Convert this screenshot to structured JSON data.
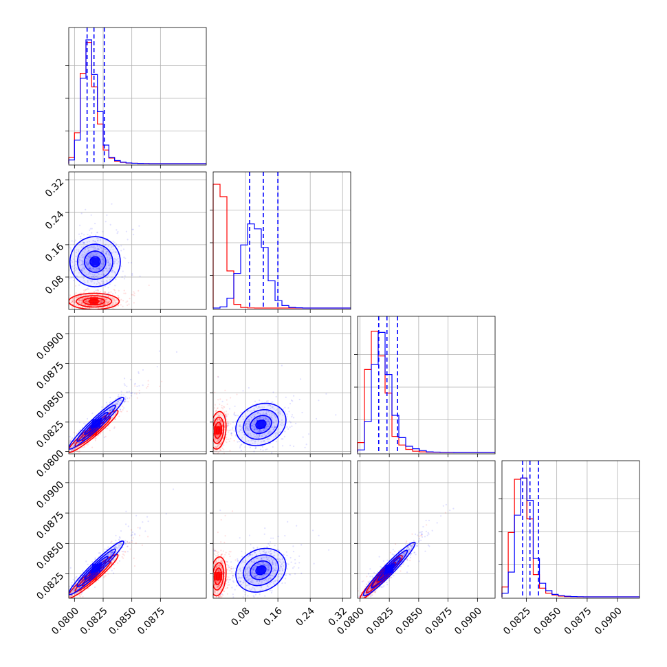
{
  "chart_data": {
    "type": "corner",
    "grid": true,
    "series_colors": {
      "red": "#ff0000",
      "blue": "#0000ff"
    },
    "variables": [
      {
        "range": [
          0.0795,
          0.0915
        ],
        "ticks": [
          0.08,
          0.0825,
          0.085,
          0.0875
        ],
        "tick_labels": [
          "0.0800",
          "0.0825",
          "0.0850",
          "0.0875"
        ],
        "quantiles_blue": [
          0.0811,
          0.0817,
          0.0826
        ]
      },
      {
        "range": [
          0.0,
          0.34
        ],
        "ticks": [
          0.08,
          0.16,
          0.24,
          0.32
        ],
        "tick_labels": [
          "0.08",
          "0.16",
          "0.24",
          "0.32"
        ],
        "quantiles_blue": [
          0.09,
          0.124,
          0.16
        ]
      },
      {
        "range": [
          0.0798,
          0.0915
        ],
        "ticks": [
          0.08,
          0.0825,
          0.085,
          0.0875,
          0.09
        ],
        "tick_labels": [
          "0.0800",
          "0.0825",
          "0.0850",
          "0.0875",
          "0.0900"
        ],
        "quantiles_blue": [
          0.0816,
          0.0823,
          0.0832
        ]
      },
      {
        "range": [
          0.0805,
          0.0918
        ],
        "ticks": [
          0.0825,
          0.085,
          0.0875,
          0.09
        ],
        "tick_labels": [
          "0.0825",
          "0.0850",
          "0.0875",
          "0.0900"
        ],
        "quantiles_blue": [
          0.0822,
          0.0828,
          0.0835
        ]
      }
    ],
    "histograms": [
      {
        "var": 0,
        "bins": [
          0.0795,
          0.0915,
          24
        ],
        "blue": [
          0.03,
          0.19,
          0.69,
          1.0,
          0.72,
          0.42,
          0.15,
          0.05,
          0.025,
          0.012,
          0.006,
          0.003,
          0.002,
          0.001,
          0,
          0,
          0,
          0,
          0,
          0,
          0,
          0,
          0,
          0
        ],
        "red": [
          0.05,
          0.25,
          0.73,
          0.98,
          0.62,
          0.32,
          0.11,
          0.045,
          0.02,
          0.01,
          0.005,
          0.003,
          0.001,
          0.001,
          0,
          0,
          0,
          0,
          0,
          0,
          0,
          0,
          0,
          0
        ]
      },
      {
        "var": 1,
        "bins": [
          0.0,
          0.34,
          20
        ],
        "blue": [
          0.0,
          0.01,
          0.08,
          0.28,
          0.51,
          0.68,
          0.64,
          0.49,
          0.22,
          0.06,
          0.02,
          0.005,
          0.002,
          0,
          0,
          0,
          0,
          0,
          0,
          0
        ],
        "red": [
          1.0,
          0.9,
          0.3,
          0.03,
          0.005,
          0.001,
          0,
          0,
          0,
          0,
          0,
          0,
          0,
          0,
          0,
          0,
          0,
          0,
          0,
          0
        ]
      },
      {
        "var": 2,
        "bins": [
          0.0798,
          0.0915,
          20
        ],
        "blue": [
          0.02,
          0.25,
          0.71,
          0.97,
          0.63,
          0.3,
          0.12,
          0.05,
          0.03,
          0.015,
          0.005,
          0.003,
          0.001,
          0.001,
          0,
          0,
          0,
          0,
          0,
          0
        ],
        "red": [
          0.08,
          0.67,
          0.98,
          0.78,
          0.48,
          0.13,
          0.06,
          0.025,
          0.01,
          0.005,
          0.002,
          0.001,
          0,
          0,
          0,
          0,
          0,
          0,
          0,
          0
        ]
      },
      {
        "var": 3,
        "bins": [
          0.0805,
          0.0918,
          22
        ],
        "blue": [
          0.03,
          0.2,
          0.66,
          0.96,
          0.78,
          0.31,
          0.11,
          0.05,
          0.02,
          0.01,
          0.005,
          0.002,
          0.001,
          0,
          0,
          0,
          0,
          0,
          0,
          0,
          0,
          0
        ],
        "red": [
          0.08,
          0.52,
          0.95,
          0.96,
          0.63,
          0.18,
          0.07,
          0.03,
          0.015,
          0.006,
          0.002,
          0.001,
          0,
          0,
          0,
          0,
          0,
          0,
          0,
          0,
          0,
          0
        ]
      }
    ],
    "pairs": [
      {
        "x_var": 0,
        "y_var": 1,
        "blue": {
          "mean": [
            0.0818,
            0.118
          ],
          "sd": [
            0.0011,
            0.031
          ],
          "rho": 0.0
        },
        "red": {
          "mean": [
            0.0817,
            0.02
          ],
          "sd": [
            0.0011,
            0.01
          ],
          "rho": 0.0
        }
      },
      {
        "x_var": 0,
        "y_var": 2,
        "blue": {
          "mean": [
            0.0819,
            0.0824
          ],
          "sd": [
            0.0012,
            0.0011
          ],
          "rho": 0.96
        },
        "red": {
          "mean": [
            0.0816,
            0.0817
          ],
          "sd": [
            0.0011,
            0.0009
          ],
          "rho": 0.95
        }
      },
      {
        "x_var": 1,
        "y_var": 2,
        "blue": {
          "mean": [
            0.118,
            0.0823
          ],
          "sd": [
            0.031,
            0.0009
          ],
          "rho": 0.2
        },
        "red": {
          "mean": [
            0.012,
            0.0818
          ],
          "sd": [
            0.01,
            0.0008
          ],
          "rho": 0.2
        }
      },
      {
        "x_var": 0,
        "y_var": 3,
        "blue": {
          "mean": [
            0.0819,
            0.083
          ],
          "sd": [
            0.0012,
            0.0011
          ],
          "rho": 0.96
        },
        "red": {
          "mean": [
            0.0816,
            0.0823
          ],
          "sd": [
            0.0011,
            0.0009
          ],
          "rho": 0.95
        }
      },
      {
        "x_var": 1,
        "y_var": 3,
        "blue": {
          "mean": [
            0.118,
            0.0828
          ],
          "sd": [
            0.031,
            0.0009
          ],
          "rho": 0.2
        },
        "red": {
          "mean": [
            0.012,
            0.0823
          ],
          "sd": [
            0.01,
            0.0008
          ],
          "rho": 0.2
        }
      },
      {
        "x_var": 2,
        "y_var": 3,
        "blue": {
          "mean": [
            0.0825,
            0.0829
          ],
          "sd": [
            0.0011,
            0.0011
          ],
          "rho": 0.96
        },
        "red": {
          "mean": [
            0.0818,
            0.0822
          ],
          "sd": [
            0.0009,
            0.0009
          ],
          "rho": 0.96
        }
      }
    ]
  }
}
